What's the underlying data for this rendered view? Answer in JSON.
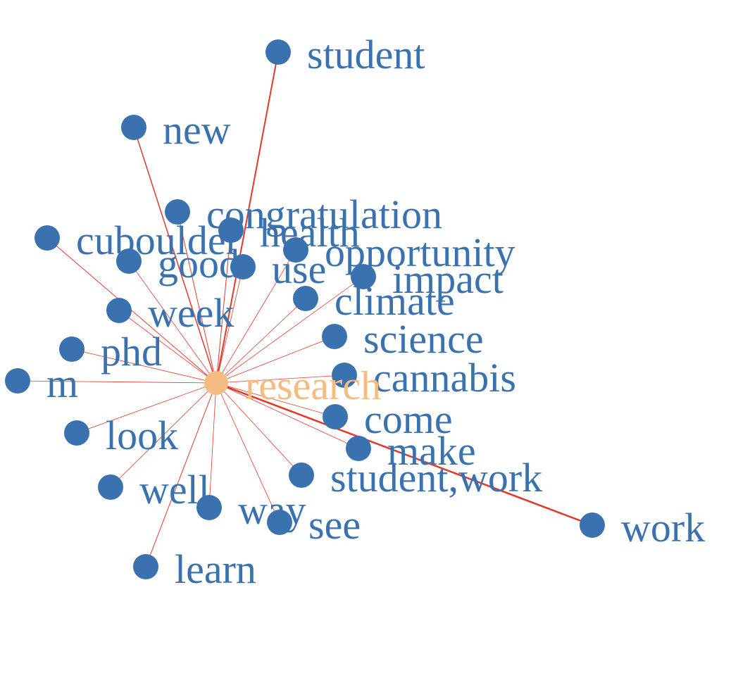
{
  "graph": {
    "center": {
      "label": "research",
      "color": "#f4bc80"
    },
    "node_color": "#3a72b0",
    "edge_color": "#e0392c",
    "nodes": [
      {
        "id": "student",
        "label": "student",
        "weight": 2
      },
      {
        "id": "new",
        "label": "new",
        "weight": 1.5
      },
      {
        "id": "congratulation",
        "label": "congratulation",
        "weight": 1
      },
      {
        "id": "health",
        "label": "health",
        "weight": 1
      },
      {
        "id": "cuboulder",
        "label": "cuboulder",
        "weight": 1
      },
      {
        "id": "opportunity",
        "label": "opportunity",
        "weight": 0.8
      },
      {
        "id": "good",
        "label": "good",
        "weight": 0.8
      },
      {
        "id": "use",
        "label": "use",
        "weight": 0.8
      },
      {
        "id": "impact",
        "label": "impact",
        "weight": 0.8
      },
      {
        "id": "climate",
        "label": "climate",
        "weight": 0.8
      },
      {
        "id": "week",
        "label": "week",
        "weight": 0.8
      },
      {
        "id": "science",
        "label": "science",
        "weight": 0.8
      },
      {
        "id": "phd",
        "label": "phd",
        "weight": 0.8
      },
      {
        "id": "cannabis",
        "label": "cannabis",
        "weight": 0.8
      },
      {
        "id": "m",
        "label": "m",
        "weight": 0.8
      },
      {
        "id": "come",
        "label": "come",
        "weight": 0.8
      },
      {
        "id": "look",
        "label": "look",
        "weight": 0.8
      },
      {
        "id": "make",
        "label": "make",
        "weight": 0.8
      },
      {
        "id": "student-work",
        "label": "student,work",
        "weight": 0.8
      },
      {
        "id": "well",
        "label": "well",
        "weight": 0.8
      },
      {
        "id": "way",
        "label": "way",
        "weight": 0.8
      },
      {
        "id": "see",
        "label": "see",
        "weight": 0.8
      },
      {
        "id": "work",
        "label": "work",
        "weight": 2.5
      },
      {
        "id": "learn",
        "label": "learn",
        "weight": 1
      }
    ]
  }
}
